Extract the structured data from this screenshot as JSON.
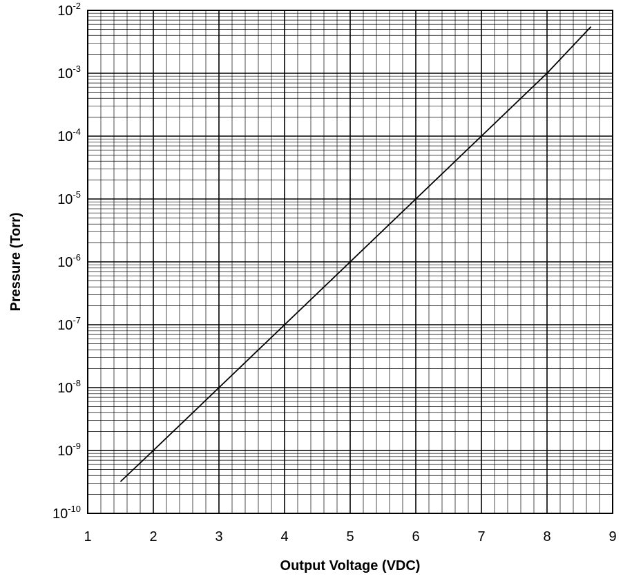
{
  "chart_data": {
    "type": "line",
    "xlabel": "Output Voltage (VDC)",
    "ylabel": "Pressure (Torr)",
    "xlim": [
      1,
      9
    ],
    "ylim": [
      1e-10,
      0.01
    ],
    "yscale": "log",
    "grid": true,
    "x_ticks": [
      "1",
      "2",
      "3",
      "4",
      "5",
      "6",
      "7",
      "8",
      "9"
    ],
    "y_ticks": [
      {
        "base": "10",
        "exp": "-10"
      },
      {
        "base": "10",
        "exp": "-9"
      },
      {
        "base": "10",
        "exp": "-8"
      },
      {
        "base": "10",
        "exp": "-7"
      },
      {
        "base": "10",
        "exp": "-6"
      },
      {
        "base": "10",
        "exp": "-5"
      },
      {
        "base": "10",
        "exp": "-4"
      },
      {
        "base": "10",
        "exp": "-3"
      },
      {
        "base": "10",
        "exp": "-2"
      }
    ],
    "series": [
      {
        "x": [
          1.5,
          2,
          3,
          4,
          5,
          6,
          7,
          8,
          8.67
        ],
        "y": [
          3.2e-10,
          1e-09,
          1e-08,
          1e-07,
          1e-06,
          1e-05,
          0.0001,
          0.001,
          0.0055
        ]
      }
    ]
  }
}
